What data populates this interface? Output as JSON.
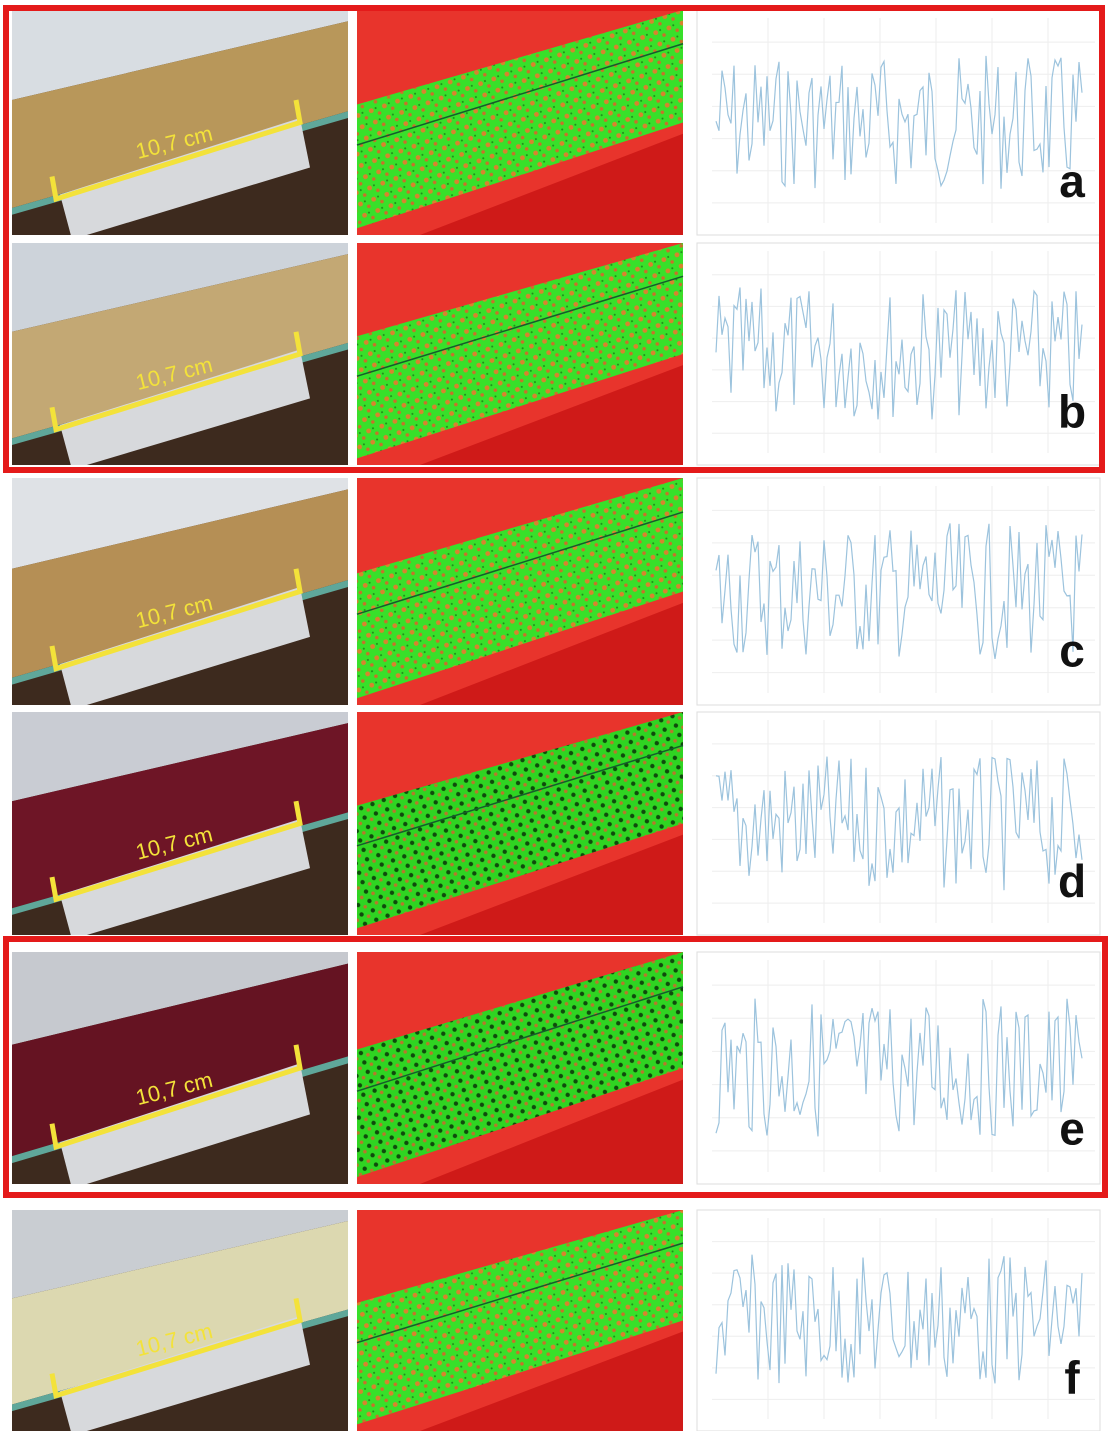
{
  "panels": [
    {
      "letter": "a",
      "scale_label": "10,7 cm"
    },
    {
      "letter": "b",
      "scale_label": "10,7 cm"
    },
    {
      "letter": "c",
      "scale_label": "10,7 cm"
    },
    {
      "letter": "d",
      "scale_label": "10,7 cm"
    },
    {
      "letter": "e",
      "scale_label": "10,7 cm"
    },
    {
      "letter": "f",
      "scale_label": "10,7 cm"
    }
  ]
}
